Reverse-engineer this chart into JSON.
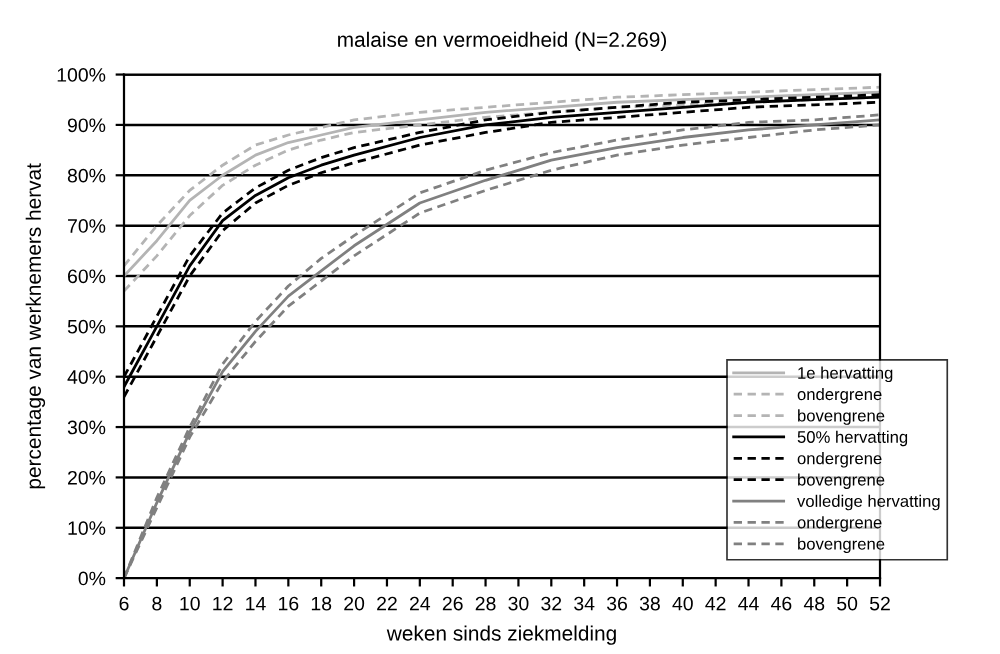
{
  "chart_data": {
    "type": "line",
    "title": "malaise en vermoeidheid (N=2.269)",
    "xlabel": "weken sinds ziekmelding",
    "ylabel": "percentage van werknemers hervat",
    "x": [
      6,
      8,
      10,
      12,
      14,
      16,
      18,
      20,
      24,
      28,
      32,
      36,
      40,
      44,
      48,
      52
    ],
    "series": [
      {
        "name": "1e hervatting",
        "color": "#b4b4b4",
        "line_style": "solid",
        "values": [
          60,
          67,
          75,
          80,
          84,
          86.5,
          88,
          89.5,
          91,
          92.5,
          93.5,
          94.5,
          95,
          95.5,
          96,
          96.5
        ]
      },
      {
        "name": "ondergrene",
        "color": "#b4b4b4",
        "line_style": "dashed",
        "values": [
          57,
          64,
          72,
          78,
          82,
          85,
          87,
          88.5,
          90,
          91.5,
          92.5,
          93.5,
          94,
          94.5,
          95,
          95.5
        ]
      },
      {
        "name": "bovengrene",
        "color": "#b4b4b4",
        "line_style": "dashed",
        "values": [
          62,
          70,
          77,
          82,
          86,
          88,
          89.5,
          91,
          92.5,
          93.5,
          94.5,
          95.5,
          96,
          96.5,
          97,
          97.5
        ]
      },
      {
        "name": "50% hervatting",
        "color": "#000000",
        "line_style": "solid",
        "values": [
          38,
          50,
          62,
          71,
          76,
          79.5,
          82,
          84,
          87.5,
          90,
          91.5,
          92.5,
          93.5,
          94.5,
          95,
          95.5
        ]
      },
      {
        "name": "ondergrene",
        "color": "#000000",
        "line_style": "dashed",
        "values": [
          36,
          48,
          60,
          69,
          74.5,
          78,
          80.5,
          82.5,
          86,
          88.5,
          90.5,
          91.5,
          92.5,
          93.5,
          94,
          94.5
        ]
      },
      {
        "name": "bovengrene",
        "color": "#000000",
        "line_style": "dashed",
        "values": [
          40,
          52,
          64,
          72.5,
          77.5,
          81,
          83.5,
          85.5,
          88.5,
          91,
          92.5,
          93.5,
          94.5,
          95,
          95.5,
          96
        ]
      },
      {
        "name": "volledige hervatting",
        "color": "#808080",
        "line_style": "solid",
        "values": [
          0,
          15,
          29,
          41,
          49,
          56,
          61,
          66,
          74.5,
          79,
          83,
          85.5,
          87.5,
          89,
          90,
          91
        ]
      },
      {
        "name": "ondergrene",
        "color": "#808080",
        "line_style": "dashed",
        "values": [
          0,
          14,
          28,
          39,
          47,
          54,
          59,
          64,
          72.5,
          77,
          81,
          84,
          86,
          87.5,
          89,
          90
        ]
      },
      {
        "name": "bovengrene",
        "color": "#808080",
        "line_style": "dashed",
        "values": [
          0,
          16,
          30,
          42.5,
          51,
          58,
          63.5,
          68,
          76.5,
          81,
          84.5,
          87,
          89,
          90.5,
          91,
          92
        ]
      }
    ],
    "xlim": [
      6,
      52
    ],
    "xticks": [
      6,
      8,
      10,
      12,
      14,
      16,
      18,
      20,
      22,
      24,
      26,
      28,
      30,
      32,
      34,
      36,
      38,
      40,
      42,
      44,
      46,
      48,
      50,
      52
    ],
    "ylim": [
      0,
      100
    ],
    "yticks": [
      {
        "value": 0,
        "label": "0%"
      },
      {
        "value": 10,
        "label": "10%"
      },
      {
        "value": 20,
        "label": "20%"
      },
      {
        "value": 30,
        "label": "30%"
      },
      {
        "value": 40,
        "label": "40%"
      },
      {
        "value": 50,
        "label": "50%"
      },
      {
        "value": 60,
        "label": "60%"
      },
      {
        "value": 70,
        "label": "70%"
      },
      {
        "value": 80,
        "label": "80%"
      },
      {
        "value": 90,
        "label": "90%"
      },
      {
        "value": 100,
        "label": "100%"
      }
    ],
    "grid": "y",
    "legend": "bottom right"
  }
}
